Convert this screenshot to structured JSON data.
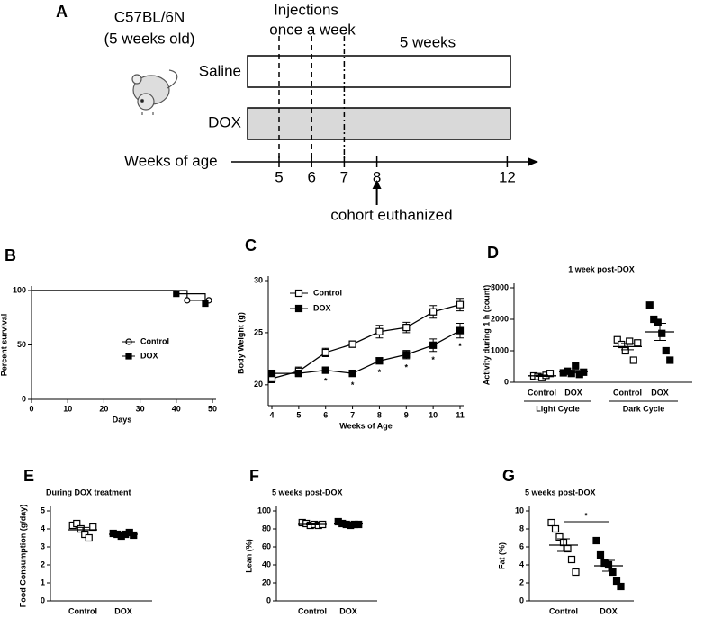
{
  "diagram": {
    "panel": "A",
    "strain": "C57BL/6N",
    "age": "(5 weeks old)",
    "injections_line1": "Injections",
    "injections_line2": "once a week",
    "duration": "5 weeks",
    "group1": "Saline",
    "group2": "DOX",
    "axis_label": "Weeks of age",
    "ticks": [
      5,
      6,
      7,
      8,
      12
    ],
    "euthanized": "cohort euthanized"
  },
  "chart_data": [
    {
      "type": "survival",
      "panel": "B",
      "x_label": "Days",
      "y_label": "Percent survival",
      "xlim": [
        0,
        50
      ],
      "xticks": [
        0,
        10,
        20,
        30,
        40,
        50
      ],
      "ylim": [
        0,
        100
      ],
      "yticks": [
        0,
        50,
        100
      ],
      "series": [
        {
          "name": "Control",
          "marker": "open-circle",
          "color": "#000000",
          "x": [
            0,
            43,
            49
          ],
          "values": [
            100,
            91,
            91
          ]
        },
        {
          "name": "DOX",
          "marker": "filled-square",
          "color": "#000000",
          "x": [
            0,
            40,
            48
          ],
          "values": [
            100,
            97,
            88
          ]
        }
      ]
    },
    {
      "type": "line",
      "panel": "C",
      "x_label": "Weeks of Age",
      "y_label": "Body Weight (g)",
      "xlim": [
        4,
        11
      ],
      "xticks": [
        4,
        5,
        6,
        7,
        8,
        9,
        10,
        11
      ],
      "ylim": [
        18,
        30
      ],
      "yticks": [
        20,
        25,
        30
      ],
      "x": [
        4,
        5,
        6,
        7,
        8,
        9,
        10,
        11
      ],
      "series": [
        {
          "name": "Control",
          "marker": "open-square",
          "color": "#000000",
          "values": [
            20.6,
            21.3,
            23.1,
            23.9,
            25.1,
            25.5,
            27.0,
            27.7
          ],
          "errors": [
            0.4,
            0.4,
            0.4,
            0.3,
            0.6,
            0.5,
            0.6,
            0.6
          ]
        },
        {
          "name": "DOX",
          "marker": "filled-square",
          "color": "#000000",
          "values": [
            21.1,
            21.1,
            21.4,
            21.1,
            22.3,
            22.9,
            23.8,
            25.2
          ],
          "errors": [
            0.3,
            0.3,
            0.2,
            0.3,
            0.3,
            0.4,
            0.6,
            0.7
          ]
        }
      ],
      "annotations": [
        {
          "x": 6,
          "text": "*"
        },
        {
          "x": 7,
          "text": "*"
        },
        {
          "x": 8,
          "text": "*"
        },
        {
          "x": 9,
          "text": "*"
        },
        {
          "x": 10,
          "text": "*"
        },
        {
          "x": 11,
          "text": "*"
        }
      ]
    },
    {
      "type": "dotplot",
      "panel": "D",
      "title": "1 week post-DOX",
      "y_label": "Activity during 1 h (count)",
      "ylim": [
        0,
        3000
      ],
      "yticks": [
        0,
        1000,
        2000,
        3000
      ],
      "categories": [
        "Control",
        "DOX",
        "Control",
        "DOX"
      ],
      "group_labels": [
        "Light Cycle",
        "Dark Cycle"
      ],
      "markers": [
        "open-square",
        "filled-square",
        "open-square",
        "filled-square"
      ],
      "values": [
        [
          200,
          180,
          150,
          220,
          280
        ],
        [
          300,
          350,
          280,
          520,
          250,
          320
        ],
        [
          1350,
          1200,
          1000,
          1300,
          700,
          1250
        ],
        [
          2450,
          2000,
          1900,
          1550,
          1000,
          700
        ]
      ],
      "means": [
        206,
        337,
        1133,
        1600
      ],
      "sems": [
        22,
        40,
        100,
        270
      ]
    },
    {
      "type": "dotplot",
      "panel": "E",
      "title": "During DOX treatment",
      "y_label": "Food Consumption (g/day)",
      "ylim": [
        0,
        5
      ],
      "yticks": [
        0,
        1,
        2,
        3,
        4,
        5
      ],
      "categories": [
        "Control",
        "DOX"
      ],
      "markers": [
        "open-square",
        "filled-square"
      ],
      "values": [
        [
          4.2,
          4.3,
          4.0,
          3.7,
          3.5,
          4.1
        ],
        [
          3.75,
          3.7,
          3.6,
          3.7,
          3.8,
          3.65
        ]
      ],
      "means": [
        3.95,
        3.7
      ],
      "sems": [
        0.13,
        0.03
      ]
    },
    {
      "type": "dotplot",
      "panel": "F",
      "title": "5 weeks post-DOX",
      "y_label": "Lean (%)",
      "ylim": [
        0,
        100
      ],
      "yticks": [
        0,
        20,
        40,
        60,
        80,
        100
      ],
      "categories": [
        "Control",
        "DOX"
      ],
      "markers": [
        "open-square",
        "filled-square"
      ],
      "values": [
        [
          87,
          86,
          84,
          85,
          84,
          85
        ],
        [
          88,
          86,
          85,
          84,
          85,
          85
        ]
      ],
      "means": [
        85,
        85.5
      ],
      "sems": [
        0.5,
        0.6
      ]
    },
    {
      "type": "dotplot",
      "panel": "G",
      "title": "5 weeks post-DOX",
      "y_label": "Fat (%)",
      "ylim": [
        0,
        10
      ],
      "yticks": [
        0,
        2,
        4,
        6,
        8,
        10
      ],
      "categories": [
        "Control",
        "DOX"
      ],
      "markers": [
        "open-square",
        "filled-square"
      ],
      "values": [
        [
          8.7,
          8.0,
          7.1,
          6.5,
          5.8,
          4.6,
          3.2
        ],
        [
          6.7,
          5.1,
          4.2,
          4.0,
          3.2,
          2.2,
          1.6
        ]
      ],
      "means": [
        6.2,
        3.9
      ],
      "sems": [
        0.7,
        0.6
      ],
      "significance": "*"
    }
  ]
}
